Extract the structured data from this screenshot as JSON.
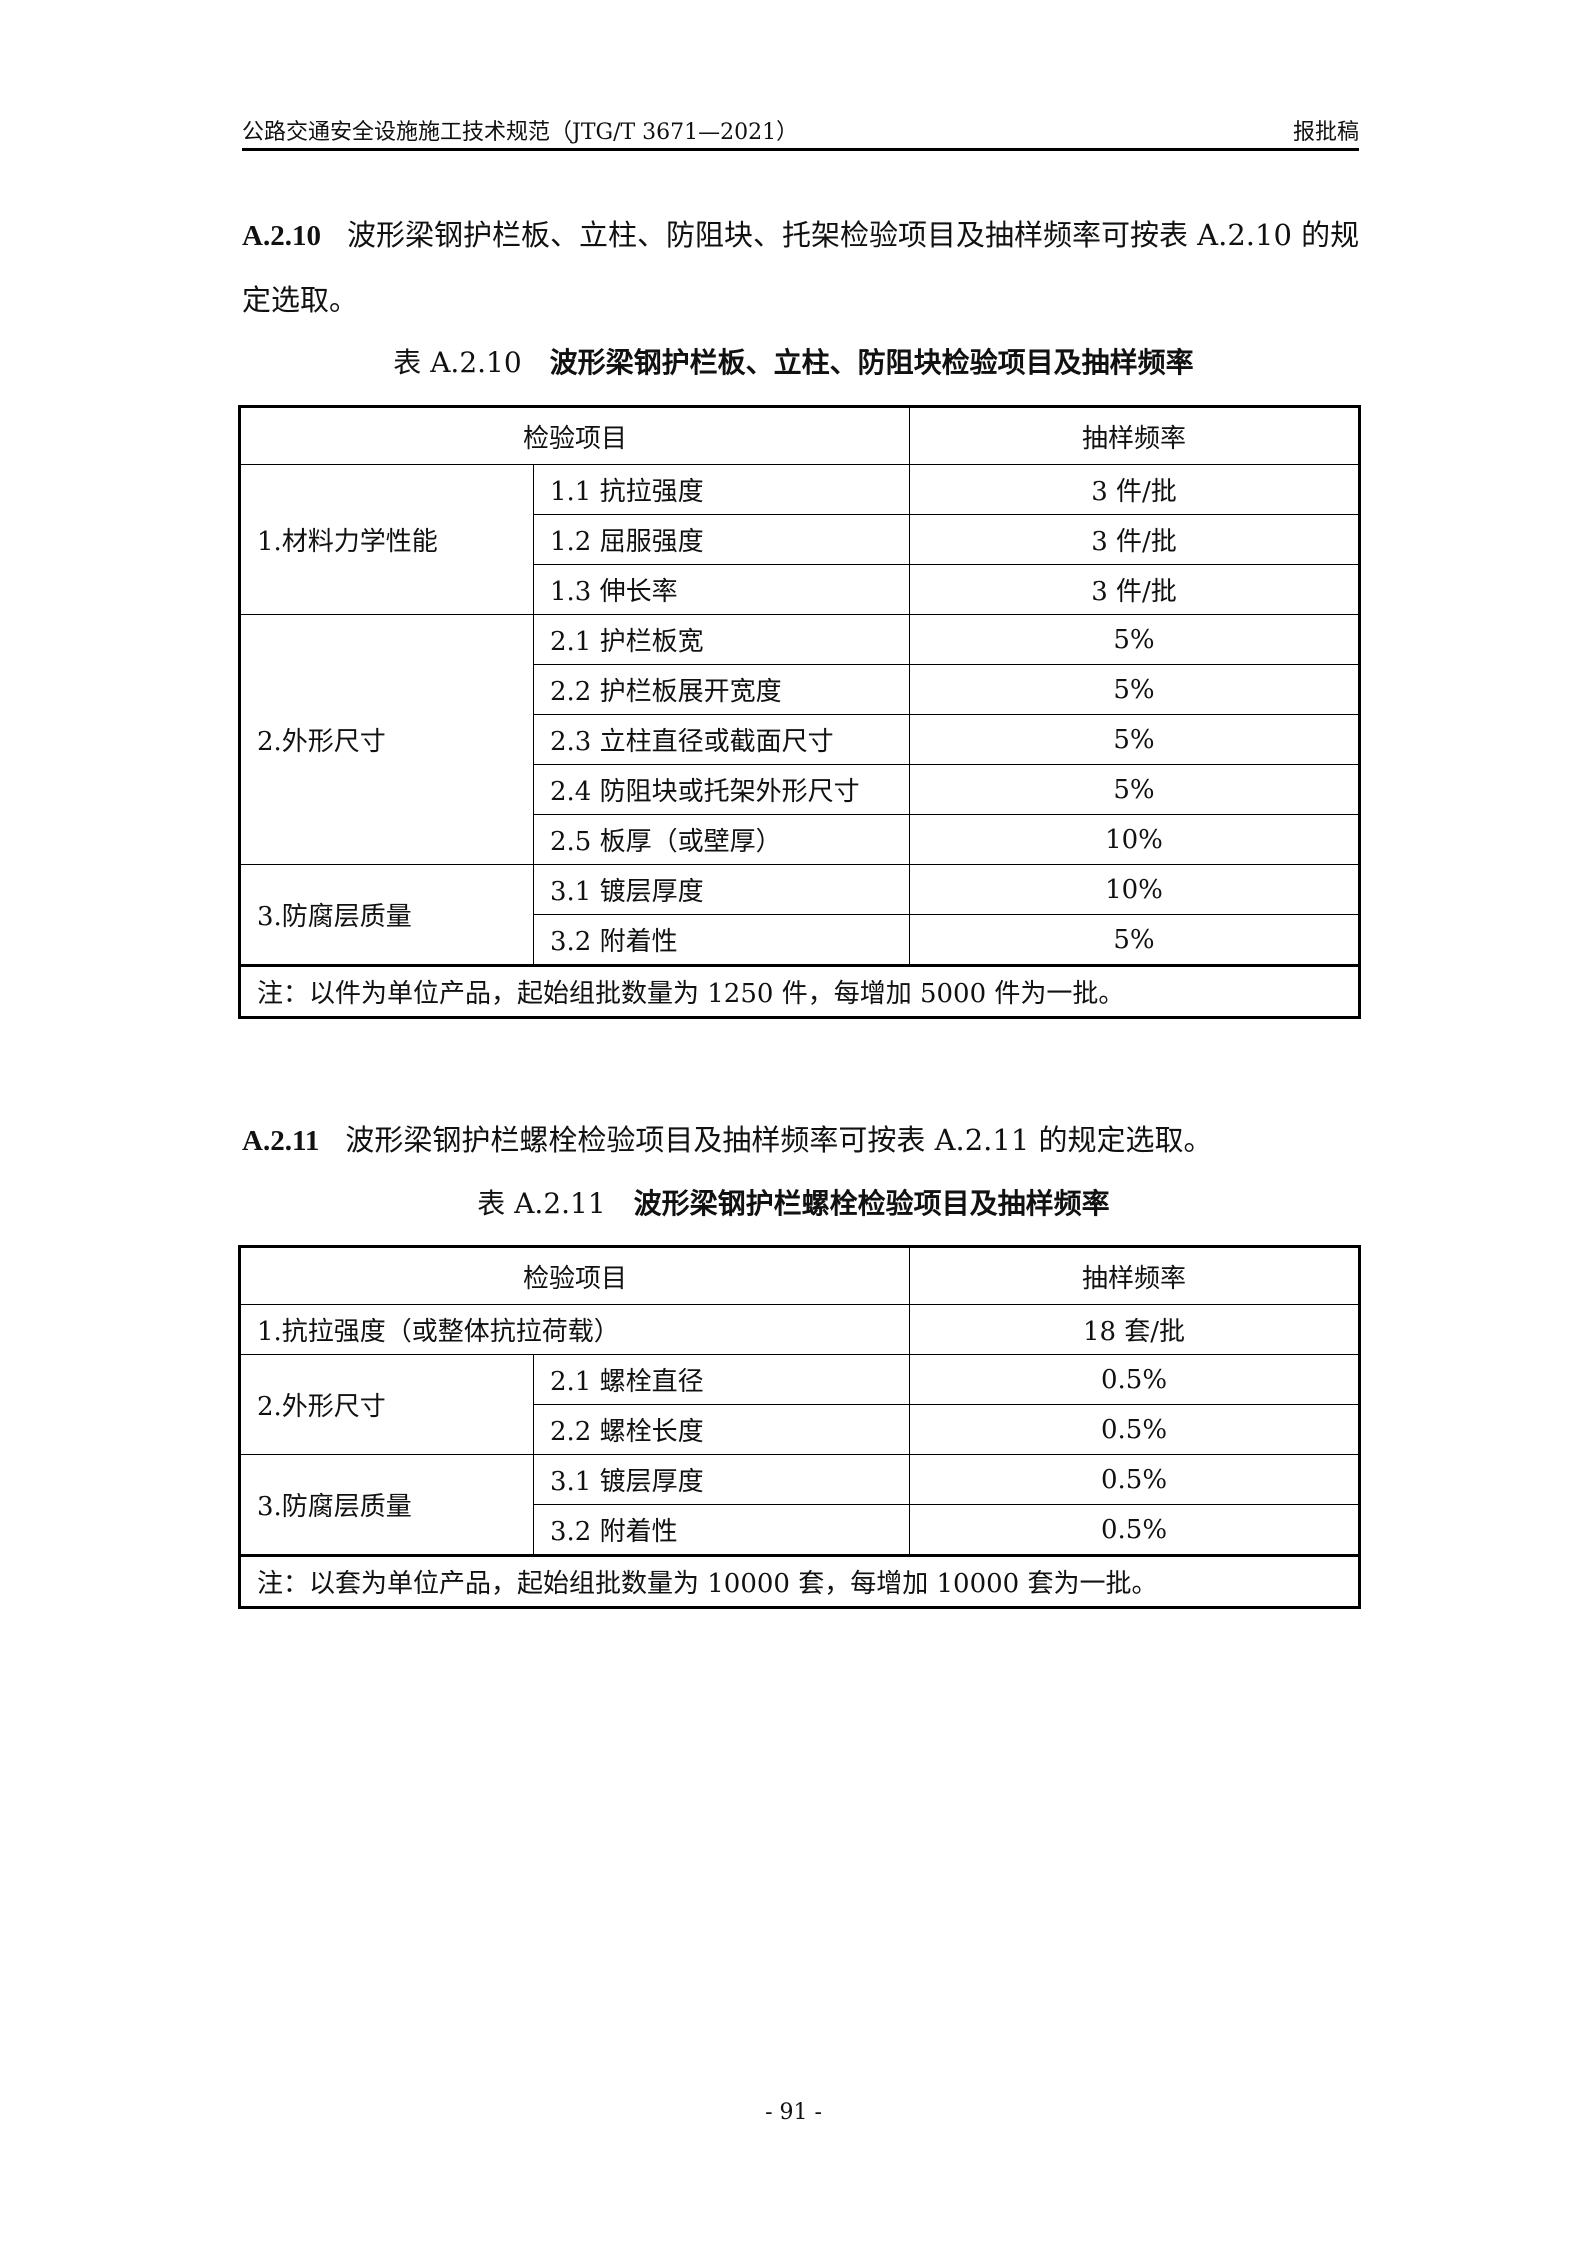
{
  "header": {
    "title": "公路交通安全设施施工技术规范（JTG/T 3671—2021）",
    "status": "报批稿"
  },
  "section1": {
    "num": "A.2.10",
    "text": "波形梁钢护栏板、立柱、防阻块、托架检验项目及抽样频率可按表 A.2.10 的规定选取。"
  },
  "table1": {
    "caption_num": "表 A.2.10",
    "caption": "波形梁钢护栏板、立柱、防阻块检验项目及抽样频率",
    "headers": [
      "检验项目",
      "抽样频率"
    ],
    "groups": [
      "1.材料力学性能",
      "2.外形尺寸",
      "3.防腐层质量"
    ],
    "rows": [
      [
        "1.1 抗拉强度",
        "3 件/批"
      ],
      [
        "1.2 屈服强度",
        "3 件/批"
      ],
      [
        "1.3 伸长率",
        "3 件/批"
      ],
      [
        "2.1 护栏板宽",
        "5%"
      ],
      [
        "2.2 护栏板展开宽度",
        "5%"
      ],
      [
        "2.3 立柱直径或截面尺寸",
        "5%"
      ],
      [
        "2.4 防阻块或托架外形尺寸",
        "5%"
      ],
      [
        "2.5 板厚（或壁厚）",
        "10%"
      ],
      [
        "3.1 镀层厚度",
        "10%"
      ],
      [
        "3.2 附着性",
        "5%"
      ]
    ],
    "note": "注：以件为单位产品，起始组批数量为 1250 件，每增加 5000 件为一批。"
  },
  "section2": {
    "num": "A.2.11",
    "text": "波形梁钢护栏螺栓检验项目及抽样频率可按表 A.2.11 的规定选取。"
  },
  "table2": {
    "caption_num": "表 A.2.11",
    "caption": "波形梁钢护栏螺栓检验项目及抽样频率",
    "headers": [
      "检验项目",
      "抽样频率"
    ],
    "row1": [
      "1.抗拉强度（或整体抗拉荷载）",
      "18 套/批"
    ],
    "groups": [
      "2.外形尺寸",
      "3.防腐层质量"
    ],
    "rows": [
      [
        "2.1 螺栓直径",
        "0.5%"
      ],
      [
        "2.2 螺栓长度",
        "0.5%"
      ],
      [
        "3.1 镀层厚度",
        "0.5%"
      ],
      [
        "3.2 附着性",
        "0.5%"
      ]
    ],
    "note": "注：以套为单位产品，起始组批数量为 10000 套，每增加 10000 套为一批。"
  },
  "page_number": "- 91 -"
}
